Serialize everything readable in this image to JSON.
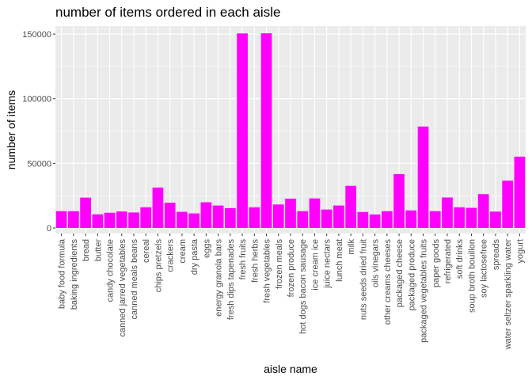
{
  "chart_data": {
    "type": "bar",
    "title": "number of items ordered in each aisle",
    "xlabel": "aisle name",
    "ylabel": "number of items",
    "ylim": [
      0,
      160000
    ],
    "yticks": [
      0,
      50000,
      100000,
      150000
    ],
    "ytick_labels": [
      "0",
      "50000",
      "100000",
      "150000"
    ],
    "bar_color": "#FF00FF",
    "panel_color": "#EBEBEB",
    "grid": true,
    "categories": [
      "baby food formula",
      "baking ingredients",
      "bread",
      "butter",
      "candy chocolate",
      "canned jarred vegetables",
      "canned meals beans",
      "cereal",
      "chips pretzels",
      "crackers",
      "cream",
      "dry pasta",
      "eggs",
      "energy granola bars",
      "fresh dips tapenades",
      "fresh fruits",
      "fresh herbs",
      "fresh vegetables",
      "frozen meals",
      "frozen produce",
      "hot dogs bacon sausage",
      "ice cream ice",
      "juice nectars",
      "lunch meat",
      "milk",
      "nuts seeds dried fruit",
      "oils vinegars",
      "other creams cheeses",
      "packaged cheese",
      "packaged produce",
      "packaged vegetables fruits",
      "paper goods",
      "refrigerated",
      "soft drinks",
      "soup broth bouillon",
      "soy lactosefree",
      "spreads",
      "water seltzer sparkling water",
      "yogurt"
    ],
    "values": [
      13000,
      13000,
      23500,
      10600,
      11800,
      12800,
      12000,
      16000,
      31300,
      19600,
      12500,
      11300,
      19900,
      17400,
      15400,
      150500,
      16000,
      150600,
      18200,
      22700,
      13000,
      22900,
      14300,
      17400,
      32600,
      12400,
      10500,
      13000,
      41700,
      13600,
      78500,
      13000,
      23600,
      16000,
      15600,
      26200,
      12700,
      36600,
      55200
    ]
  }
}
